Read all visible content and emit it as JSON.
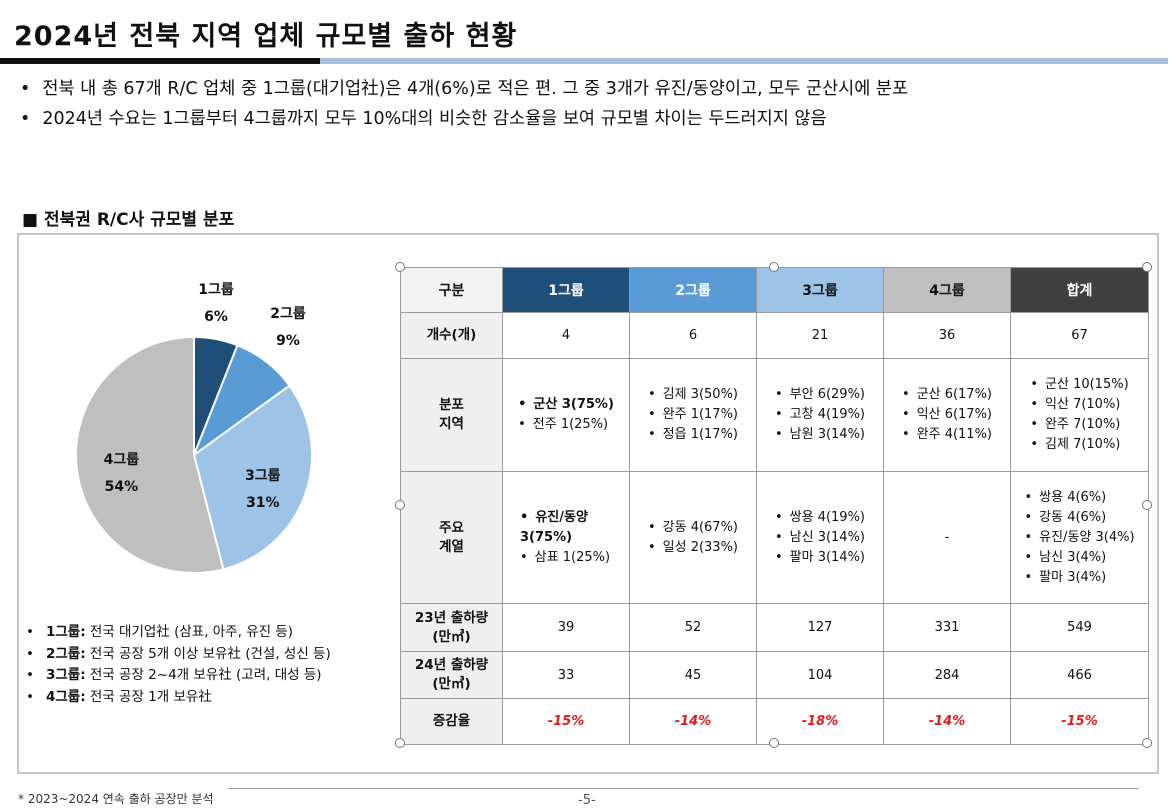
{
  "title": "2024년 전북 지역 업체 규모별 출하 현황",
  "bullets": [
    "전북 내 총 67개 R/C 업체 중 1그룹(대기업社)은 4개(6%)로 적은 편. 그 중 3개가 유진/동양이고, 모두 군산시에 분포",
    "2024년 수요는 1그룹부터 4그룹까지 모두 10%대의 비슷한 감소율을 보여 규모별 차이는 두드러지지 않음"
  ],
  "section_title": "■ 전북권 R/C사 규모별 분포",
  "chart_data": {
    "type": "pie",
    "title": "전북권 R/C사 규모별 분포",
    "categories": [
      "1그룹",
      "2그룹",
      "3그룹",
      "4그룹"
    ],
    "values": [
      6,
      9,
      31,
      54
    ],
    "value_labels": [
      "6%",
      "9%",
      "31%",
      "54%"
    ],
    "unit": "%",
    "colors": [
      "#1f4e79",
      "#5b9bd5",
      "#9dc3e6",
      "#bfbfbf"
    ]
  },
  "legend": [
    {
      "label": "1그룹:",
      "desc": "전국 대기업社 (삼표, 아주, 유진 등)"
    },
    {
      "label": "2그룹:",
      "desc": "전국 공장 5개 이상 보유社 (건설, 성신 등)"
    },
    {
      "label": "3그룹:",
      "desc": "전국 공장 2~4개 보유社 (고려, 대성 등)"
    },
    {
      "label": "4그룹:",
      "desc": "전국 공장 1개 보유社"
    }
  ],
  "table": {
    "headers": [
      "구분",
      "1그룹",
      "2그룹",
      "3그룹",
      "4그룹",
      "합계"
    ],
    "header_colors": [
      "#f2f2f2",
      "#1f4e79",
      "#5b9bd5",
      "#9dc3e6",
      "#bfbfbf",
      "#404040"
    ],
    "count_label": "개수(개)",
    "counts": [
      "4",
      "6",
      "21",
      "36",
      "67"
    ],
    "region_label": [
      "분포",
      "지역"
    ],
    "regions": [
      [
        "군산 3(75%)",
        "전주 1(25%)"
      ],
      [
        "김제 3(50%)",
        "완주 1(17%)",
        "정읍 1(17%)"
      ],
      [
        "부안 6(29%)",
        "고창 4(19%)",
        "남원 3(14%)"
      ],
      [
        "군산 6(17%)",
        "익산 6(17%)",
        "완주 4(11%)"
      ],
      [
        "군산 10(15%)",
        "익산 7(10%)",
        "완주 7(10%)",
        "김제 7(10%)"
      ]
    ],
    "series_label": [
      "주요",
      "계열"
    ],
    "series": [
      [
        "유진/동양 3(75%)",
        "삼표 1(25%)"
      ],
      [
        "강동 4(67%)",
        "일성 2(33%)"
      ],
      [
        "쌍용 4(19%)",
        "남신 3(14%)",
        "팔마 3(14%)"
      ],
      [],
      [
        "쌍용 4(6%)",
        "강동 4(6%)",
        "유진/동양 3(4%)",
        "남신 3(4%)",
        "팔마 3(4%)"
      ]
    ],
    "no_series_text": "-",
    "ship23_label": [
      "23년 출하량",
      "(만㎥)"
    ],
    "ship23": [
      "39",
      "52",
      "127",
      "331",
      "549"
    ],
    "ship24_label": [
      "24년 출하량",
      "(만㎥)"
    ],
    "ship24": [
      "33",
      "45",
      "104",
      "284",
      "466"
    ],
    "change_label": "증감율",
    "change": [
      "-15%",
      "-14%",
      "-18%",
      "-14%",
      "-15%"
    ]
  },
  "footnote": "* 2023~2024 연속 출하 공장만 분석",
  "page_number": "-5-"
}
